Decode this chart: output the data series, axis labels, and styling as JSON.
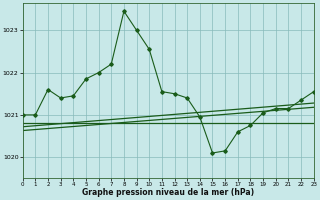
{
  "title": "Graphe pression niveau de la mer (hPa)",
  "background_color": "#c8e8e8",
  "grid_color": "#88bbbb",
  "line_color": "#1a5c1a",
  "xlim": [
    0,
    23
  ],
  "ylim": [
    1019.5,
    1023.65
  ],
  "yticks": [
    1020,
    1021,
    1022,
    1023
  ],
  "xticks": [
    0,
    1,
    2,
    3,
    4,
    5,
    6,
    7,
    8,
    9,
    10,
    11,
    12,
    13,
    14,
    15,
    16,
    17,
    18,
    19,
    20,
    21,
    22,
    23
  ],
  "hours": [
    0,
    1,
    2,
    3,
    4,
    5,
    6,
    7,
    8,
    9,
    10,
    11,
    12,
    13,
    14,
    15,
    16,
    17,
    18,
    19,
    20,
    21,
    22,
    23
  ],
  "pressure_main": [
    1021.0,
    1021.0,
    1021.6,
    1021.4,
    1021.45,
    1021.85,
    1022.0,
    1022.2,
    1023.45,
    1023.0,
    1022.55,
    1021.55,
    1021.5,
    1021.4,
    1020.95,
    1020.1,
    1020.15,
    1020.6,
    1020.75,
    1021.05,
    1021.15,
    1021.15,
    1021.35,
    1021.55
  ],
  "trend1_x": [
    0,
    23
  ],
  "trend1_y": [
    1020.82,
    1020.82
  ],
  "trend2_x": [
    0,
    23
  ],
  "trend2_y": [
    1020.72,
    1021.28
  ],
  "trend3_x": [
    0,
    23
  ],
  "trend3_y": [
    1020.63,
    1021.18
  ]
}
